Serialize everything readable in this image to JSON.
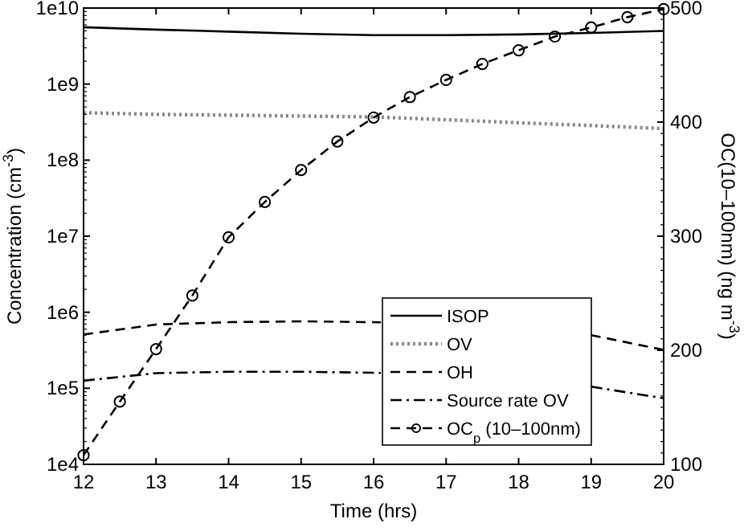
{
  "chart_data": {
    "type": "line",
    "xlabel": "Time (hrs)",
    "ylabel": "Concentration (cm$^{-3}$)",
    "y2label": "OC(10–100nm) (ng m$^{-3}$)",
    "log": "y",
    "legend": "bottom right",
    "grid": false,
    "xlim": [
      12,
      20
    ],
    "xticks": [
      12,
      13,
      14,
      15,
      16,
      17,
      18,
      19,
      20
    ],
    "ylim": [
      10000,
      10000000000
    ],
    "yticks": [
      {
        "value": 10000,
        "label": "1e4"
      },
      {
        "value": 100000,
        "label": "1e5"
      },
      {
        "value": 1000000,
        "label": "1e6"
      },
      {
        "value": 10000000,
        "label": "1e7"
      },
      {
        "value": 100000000,
        "label": "1e8"
      },
      {
        "value": 1000000000,
        "label": "1e9"
      },
      {
        "value": 10000000000,
        "label": "1e10"
      }
    ],
    "y2lim": [
      100,
      500
    ],
    "y2ticks": [
      100,
      200,
      300,
      400,
      500
    ],
    "series": [
      {
        "name": "ISOP",
        "color": "#000000",
        "line_style": "solid",
        "marker": "none",
        "x": [
          12,
          13,
          14,
          15,
          16,
          17,
          18,
          19,
          20
        ],
        "values": [
          5600000000,
          5200000000,
          4900000000,
          4600000000,
          4400000000,
          4400000000,
          4500000000,
          4700000000,
          5000000000
        ]
      },
      {
        "name": "OV",
        "color": "#888888",
        "line_style": "dotted",
        "marker": "none",
        "x": [
          12,
          13,
          14,
          15,
          16,
          17,
          18,
          19,
          20
        ],
        "values": [
          420000000,
          400000000,
          390000000,
          380000000,
          370000000,
          340000000,
          310000000,
          285000000,
          260000000
        ]
      },
      {
        "name": "OH",
        "color": "#000000",
        "line_style": "dashed",
        "marker": "none",
        "x": [
          12,
          13,
          14,
          15,
          16,
          16.1,
          17,
          18,
          19,
          20
        ],
        "values": [
          510000,
          690000,
          740000,
          760000,
          740000,
          735000,
          null,
          null,
          500000,
          320000
        ]
      },
      {
        "name": "Source rate OV",
        "color": "#000000",
        "line_style": "dashdot",
        "marker": "none",
        "x": [
          12,
          13,
          14,
          15,
          16,
          16.1,
          17,
          18,
          19,
          20
        ],
        "values": [
          126000,
          158000,
          165000,
          165000,
          160000,
          159000,
          null,
          null,
          105000,
          74000
        ]
      },
      {
        "name": "OC$_{p}$ (10–100nm)",
        "color": "#000000",
        "line_style": "dashed",
        "marker": "circle",
        "axis": "y2",
        "x": [
          12,
          12.5,
          13,
          13.5,
          14,
          14.5,
          15,
          15.5,
          16,
          16.5,
          17,
          17.5,
          18,
          18.5,
          19,
          19.5,
          20
        ],
        "values": [
          108,
          155,
          201,
          248,
          299,
          330,
          358,
          383,
          404,
          422,
          437,
          451,
          463,
          475,
          483,
          492,
          499
        ]
      }
    ]
  }
}
